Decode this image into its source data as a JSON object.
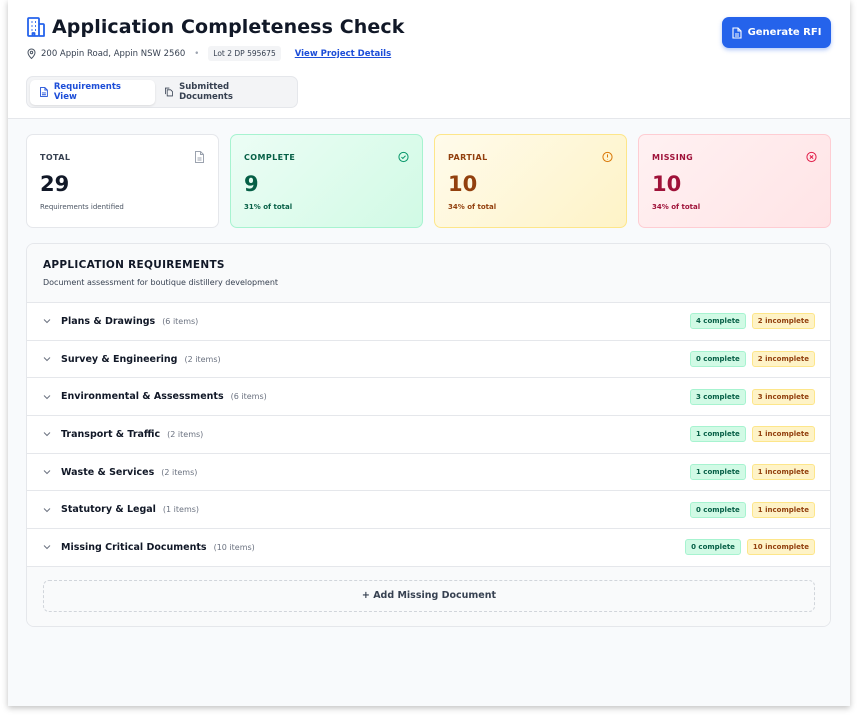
{
  "header": {
    "title": "Application Completeness Check",
    "address": "200 Appin Road, Appin NSW 2560",
    "lot": "Lot 2 DP 595675",
    "view_link": "View Project Details",
    "rfi_button": "Generate RFI"
  },
  "tabs": [
    {
      "label": "Requirements View",
      "active": true
    },
    {
      "label": "Submitted Documents",
      "active": false
    }
  ],
  "stats": {
    "total": {
      "label": "TOTAL",
      "value": "29",
      "sub": "Requirements identified"
    },
    "complete": {
      "label": "COMPLETE",
      "value": "9",
      "sub": "31% of total"
    },
    "partial": {
      "label": "PARTIAL",
      "value": "10",
      "sub": "34% of total"
    },
    "missing": {
      "label": "MISSING",
      "value": "10",
      "sub": "34% of total"
    }
  },
  "requirements": {
    "title": "APPLICATION REQUIREMENTS",
    "subtitle": "Document assessment for boutique distillery development",
    "groups": [
      {
        "name": "Plans & Drawings",
        "count": "(6 items)",
        "complete": "4 complete",
        "incomplete": "2 incomplete"
      },
      {
        "name": "Survey & Engineering",
        "count": "(2 items)",
        "complete": "0 complete",
        "incomplete": "2 incomplete"
      },
      {
        "name": "Environmental & Assessments",
        "count": "(6 items)",
        "complete": "3 complete",
        "incomplete": "3 incomplete"
      },
      {
        "name": "Transport & Traffic",
        "count": "(2 items)",
        "complete": "1 complete",
        "incomplete": "1 incomplete"
      },
      {
        "name": "Waste & Services",
        "count": "(2 items)",
        "complete": "1 complete",
        "incomplete": "1 incomplete"
      },
      {
        "name": "Statutory & Legal",
        "count": "(1 items)",
        "complete": "0 complete",
        "incomplete": "1 incomplete"
      },
      {
        "name": "Missing Critical Documents",
        "count": "(10 items)",
        "complete": "0 complete",
        "incomplete": "10 incomplete"
      }
    ],
    "add_button": "+ Add Missing Document"
  },
  "colors": {
    "accent": "#2563eb",
    "complete": "#065f46",
    "partial": "#92400e",
    "missing": "#9f1239"
  },
  "icons": [
    "building-icon",
    "map-pin-icon",
    "document-icon",
    "documents-icon",
    "check-circle-icon",
    "alert-circle-icon",
    "x-circle-icon",
    "chevron-down-icon"
  ]
}
